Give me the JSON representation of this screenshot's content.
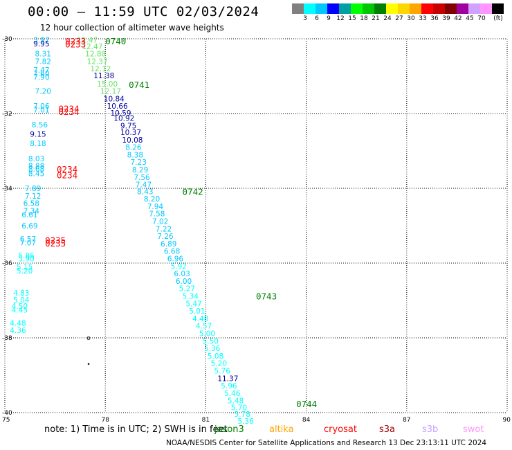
{
  "header": {
    "title": "00:00 – 11:59 UTC 02/03/2024",
    "subtitle": "12 hour collection of altimeter wave heights"
  },
  "legend": {
    "unit": "(ft)",
    "bins": [
      {
        "color": "#808080",
        "label": ""
      },
      {
        "color": "#00ffff",
        "label": "3"
      },
      {
        "color": "#00c8ff",
        "label": "6"
      },
      {
        "color": "#0000ff",
        "label": "9"
      },
      {
        "color": "#00a0a0",
        "label": "12"
      },
      {
        "color": "#00ff00",
        "label": "15"
      },
      {
        "color": "#00c800",
        "label": "18"
      },
      {
        "color": "#008000",
        "label": "21"
      },
      {
        "color": "#ffff00",
        "label": "24"
      },
      {
        "color": "#ffd700",
        "label": "27"
      },
      {
        "color": "#ffa500",
        "label": "30"
      },
      {
        "color": "#ff0000",
        "label": "33"
      },
      {
        "color": "#c80000",
        "label": "36"
      },
      {
        "color": "#800000",
        "label": "39"
      },
      {
        "color": "#a000a0",
        "label": "42"
      },
      {
        "color": "#d2a0ff",
        "label": "45"
      },
      {
        "color": "#ff96ff",
        "label": "70"
      },
      {
        "color": "#000000",
        "label": ""
      }
    ]
  },
  "map": {
    "lon_range": [
      75,
      90
    ],
    "lat_range": [
      -40,
      -30
    ],
    "lon_ticks": [
      "75",
      "78",
      "81",
      "84",
      "87",
      "90"
    ],
    "lat_ticks": [
      {
        "lat": -30,
        "label": "-30"
      },
      {
        "lat": -32,
        "label": "-32"
      },
      {
        "lat": -34,
        "label": "-34"
      },
      {
        "lat": -36,
        "label": "-36"
      },
      {
        "lat": -38,
        "label": "-38"
      },
      {
        "lat": -40,
        "label": "-40"
      }
    ],
    "track_labels": [
      {
        "lon": 75.85,
        "lat": -30.03,
        "text": "3.97",
        "color": "#00c8ff"
      },
      {
        "lon": 75.85,
        "lat": -30.13,
        "text": "9.95",
        "color": "#0000a0"
      },
      {
        "lon": 75.9,
        "lat": -30.4,
        "text": "8.31",
        "color": "#00c8ff"
      },
      {
        "lon": 75.9,
        "lat": -30.6,
        "text": "7.82",
        "color": "#00c8ff"
      },
      {
        "lon": 75.85,
        "lat": -30.83,
        "text": "7.47",
        "color": "#00c8ff"
      },
      {
        "lon": 75.85,
        "lat": -30.93,
        "text": "7.60",
        "color": "#00c8ff"
      },
      {
        "lon": 75.85,
        "lat": -31.02,
        "text": "7.90",
        "color": "#00c8ff"
      },
      {
        "lon": 75.9,
        "lat": -31.4,
        "text": "7.20",
        "color": "#00c8ff"
      },
      {
        "lon": 75.85,
        "lat": -31.8,
        "text": "7.06",
        "color": "#00c8ff"
      },
      {
        "lon": 75.85,
        "lat": -31.9,
        "text": "7.01",
        "color": "#00c8ff"
      },
      {
        "lon": 75.8,
        "lat": -32.3,
        "text": "8.56",
        "color": "#00c8ff"
      },
      {
        "lon": 75.75,
        "lat": -32.55,
        "text": "9.15",
        "color": "#0000a0"
      },
      {
        "lon": 75.75,
        "lat": -32.8,
        "text": "8.18",
        "color": "#00c8ff"
      },
      {
        "lon": 75.7,
        "lat": -33.2,
        "text": "8.03",
        "color": "#00c8ff"
      },
      {
        "lon": 75.7,
        "lat": -33.4,
        "text": "8.88",
        "color": "#00c8ff"
      },
      {
        "lon": 75.7,
        "lat": -33.48,
        "text": "8.68",
        "color": "#00c8ff"
      },
      {
        "lon": 75.7,
        "lat": -33.6,
        "text": "8.45",
        "color": "#00c8ff"
      },
      {
        "lon": 75.6,
        "lat": -34.0,
        "text": "7.89",
        "color": "#00c8ff"
      },
      {
        "lon": 75.6,
        "lat": -34.2,
        "text": "7.12",
        "color": "#00c8ff"
      },
      {
        "lon": 75.55,
        "lat": -34.4,
        "text": "6.58",
        "color": "#00c8ff"
      },
      {
        "lon": 75.55,
        "lat": -34.6,
        "text": "7.34",
        "color": "#00c8ff"
      },
      {
        "lon": 75.5,
        "lat": -34.7,
        "text": "6.61",
        "color": "#00c8ff"
      },
      {
        "lon": 75.5,
        "lat": -35.0,
        "text": "6.69",
        "color": "#00c8ff"
      },
      {
        "lon": 75.45,
        "lat": -35.35,
        "text": "6.57",
        "color": "#00c8ff"
      },
      {
        "lon": 75.45,
        "lat": -35.45,
        "text": "7.07",
        "color": "#00c8ff"
      },
      {
        "lon": 75.4,
        "lat": -35.8,
        "text": "5.86",
        "color": "#00ffff"
      },
      {
        "lon": 75.4,
        "lat": -35.88,
        "text": "5.90",
        "color": "#00ffff"
      },
      {
        "lon": 75.35,
        "lat": -36.1,
        "text": "5.15",
        "color": "#00ffff"
      },
      {
        "lon": 75.35,
        "lat": -36.2,
        "text": "5.20",
        "color": "#00ffff"
      },
      {
        "lon": 75.25,
        "lat": -36.8,
        "text": "4.83",
        "color": "#00ffff"
      },
      {
        "lon": 75.25,
        "lat": -36.98,
        "text": "5.04",
        "color": "#00ffff"
      },
      {
        "lon": 75.2,
        "lat": -37.15,
        "text": "4.50",
        "color": "#00ffff"
      },
      {
        "lon": 75.2,
        "lat": -37.25,
        "text": "4.45",
        "color": "#00ffff"
      },
      {
        "lon": 75.15,
        "lat": -37.6,
        "text": "4.48",
        "color": "#00ffff"
      },
      {
        "lon": 75.15,
        "lat": -37.8,
        "text": "4.36",
        "color": "#00ffff"
      },
      {
        "lon": 77.15,
        "lat": -30.03,
        "text": "12.47",
        "color": "#64e664"
      },
      {
        "lon": 77.3,
        "lat": -30.2,
        "text": "12.47",
        "color": "#64e664"
      },
      {
        "lon": 77.4,
        "lat": -30.4,
        "text": "12.88",
        "color": "#64e664"
      },
      {
        "lon": 77.45,
        "lat": -30.6,
        "text": "12.37",
        "color": "#64e664"
      },
      {
        "lon": 77.55,
        "lat": -30.8,
        "text": "12.12",
        "color": "#64e664"
      },
      {
        "lon": 77.65,
        "lat": -30.98,
        "text": "11.38",
        "color": "#0000a0"
      },
      {
        "lon": 77.75,
        "lat": -31.2,
        "text": "15.00",
        "color": "#64e664"
      },
      {
        "lon": 77.85,
        "lat": -31.4,
        "text": "12.17",
        "color": "#64e664"
      },
      {
        "lon": 77.95,
        "lat": -31.6,
        "text": "10.84",
        "color": "#0000a0"
      },
      {
        "lon": 78.05,
        "lat": -31.8,
        "text": "10.66",
        "color": "#0000a0"
      },
      {
        "lon": 78.15,
        "lat": -31.98,
        "text": "10.59",
        "color": "#0000a0"
      },
      {
        "lon": 78.25,
        "lat": -32.12,
        "text": "10.92",
        "color": "#0000a0"
      },
      {
        "lon": 78.45,
        "lat": -32.32,
        "text": "9.75",
        "color": "#0000a0"
      },
      {
        "lon": 78.45,
        "lat": -32.5,
        "text": "10.37",
        "color": "#0000a0"
      },
      {
        "lon": 78.5,
        "lat": -32.7,
        "text": "10.08",
        "color": "#0000a0"
      },
      {
        "lon": 78.6,
        "lat": -32.9,
        "text": "8.26",
        "color": "#00c8ff"
      },
      {
        "lon": 78.65,
        "lat": -33.1,
        "text": "8.38",
        "color": "#00c8ff"
      },
      {
        "lon": 78.75,
        "lat": -33.3,
        "text": "7.23",
        "color": "#00c8ff"
      },
      {
        "lon": 78.8,
        "lat": -33.5,
        "text": "8.29",
        "color": "#00c8ff"
      },
      {
        "lon": 78.85,
        "lat": -33.7,
        "text": "7.56",
        "color": "#00c8ff"
      },
      {
        "lon": 78.9,
        "lat": -33.9,
        "text": "7.47",
        "color": "#00c8ff"
      },
      {
        "lon": 78.95,
        "lat": -34.08,
        "text": "8.43",
        "color": "#00c8ff"
      },
      {
        "lon": 79.15,
        "lat": -34.28,
        "text": "8.20",
        "color": "#00c8ff"
      },
      {
        "lon": 79.25,
        "lat": -34.48,
        "text": "7.94",
        "color": "#00c8ff"
      },
      {
        "lon": 79.3,
        "lat": -34.68,
        "text": "7.58",
        "color": "#00c8ff"
      },
      {
        "lon": 79.4,
        "lat": -34.88,
        "text": "7.02",
        "color": "#00c8ff"
      },
      {
        "lon": 79.5,
        "lat": -35.08,
        "text": "7.22",
        "color": "#00c8ff"
      },
      {
        "lon": 79.55,
        "lat": -35.28,
        "text": "7.26",
        "color": "#00c8ff"
      },
      {
        "lon": 79.65,
        "lat": -35.48,
        "text": "6.89",
        "color": "#00c8ff"
      },
      {
        "lon": 79.75,
        "lat": -35.68,
        "text": "6.68",
        "color": "#00c8ff"
      },
      {
        "lon": 79.85,
        "lat": -35.88,
        "text": "6.96",
        "color": "#00c8ff"
      },
      {
        "lon": 79.95,
        "lat": -36.08,
        "text": "5.92",
        "color": "#00ffff"
      },
      {
        "lon": 80.05,
        "lat": -36.28,
        "text": "6.03",
        "color": "#00c8ff"
      },
      {
        "lon": 80.1,
        "lat": -36.48,
        "text": "6.00",
        "color": "#00c8ff"
      },
      {
        "lon": 80.2,
        "lat": -36.68,
        "text": "5.27",
        "color": "#00ffff"
      },
      {
        "lon": 80.3,
        "lat": -36.88,
        "text": "5.34",
        "color": "#00ffff"
      },
      {
        "lon": 80.4,
        "lat": -37.08,
        "text": "5.47",
        "color": "#00ffff"
      },
      {
        "lon": 80.5,
        "lat": -37.28,
        "text": "5.01",
        "color": "#00ffff"
      },
      {
        "lon": 80.6,
        "lat": -37.48,
        "text": "4.48",
        "color": "#00ffff"
      },
      {
        "lon": 80.7,
        "lat": -37.68,
        "text": "4.57",
        "color": "#00ffff"
      },
      {
        "lon": 80.8,
        "lat": -37.88,
        "text": "5.00",
        "color": "#00ffff"
      },
      {
        "lon": 80.9,
        "lat": -38.08,
        "text": "5.50",
        "color": "#00ffff"
      },
      {
        "lon": 80.95,
        "lat": -38.28,
        "text": "5.36",
        "color": "#00ffff"
      },
      {
        "lon": 81.05,
        "lat": -38.48,
        "text": "5.08",
        "color": "#00ffff"
      },
      {
        "lon": 81.15,
        "lat": -38.68,
        "text": "5.20",
        "color": "#00ffff"
      },
      {
        "lon": 81.25,
        "lat": -38.88,
        "text": "5.76",
        "color": "#00ffff"
      },
      {
        "lon": 81.35,
        "lat": -39.08,
        "text": "11.37",
        "color": "#0000a0"
      },
      {
        "lon": 81.45,
        "lat": -39.28,
        "text": "5.96",
        "color": "#00ffff"
      },
      {
        "lon": 81.55,
        "lat": -39.48,
        "text": "5.46",
        "color": "#00ffff"
      },
      {
        "lon": 81.65,
        "lat": -39.68,
        "text": "5.48",
        "color": "#00ffff"
      },
      {
        "lon": 81.75,
        "lat": -39.86,
        "text": "5.70",
        "color": "#00ffff"
      },
      {
        "lon": 81.85,
        "lat": -40.04,
        "text": "5.78",
        "color": "#00ffff"
      },
      {
        "lon": 81.95,
        "lat": -40.22,
        "text": "5.36",
        "color": "#00ffff"
      }
    ],
    "time_labels": [
      {
        "lon": 76.8,
        "lat": -30.06,
        "text": "0233",
        "color": "#ff0000"
      },
      {
        "lon": 76.8,
        "lat": -30.14,
        "text": "0233",
        "color": "#ff0000"
      },
      {
        "lon": 78.0,
        "lat": -30.06,
        "text": "0740",
        "color": "#008000"
      },
      {
        "lon": 78.7,
        "lat": -31.22,
        "text": "0741",
        "color": "#008000"
      },
      {
        "lon": 76.6,
        "lat": -31.86,
        "text": "0234",
        "color": "#ff0000"
      },
      {
        "lon": 76.6,
        "lat": -31.94,
        "text": "0234",
        "color": "#ff0000"
      },
      {
        "lon": 76.55,
        "lat": -33.48,
        "text": "0234",
        "color": "#ff0000"
      },
      {
        "lon": 76.55,
        "lat": -33.64,
        "text": "0234",
        "color": "#ff0000"
      },
      {
        "lon": 80.3,
        "lat": -34.08,
        "text": "0742",
        "color": "#008000"
      },
      {
        "lon": 76.2,
        "lat": -35.38,
        "text": "0235",
        "color": "#ff0000"
      },
      {
        "lon": 76.2,
        "lat": -35.46,
        "text": "0235",
        "color": "#ff0000"
      },
      {
        "lon": 82.5,
        "lat": -36.88,
        "text": "0743",
        "color": "#008000"
      },
      {
        "lon": 83.7,
        "lat": -39.76,
        "text": "0744",
        "color": "#008000"
      }
    ],
    "markers": [
      {
        "lon": 77.5,
        "lat": -38.0,
        "symbol": "o"
      },
      {
        "lon": 77.5,
        "lat": -38.7,
        "symbol": "•"
      }
    ]
  },
  "footer": {
    "note": "note:  1) Time is in UTC;  2) SWH is in feet",
    "satellites": [
      {
        "name": "jason3",
        "color": "#008000"
      },
      {
        "name": "altika",
        "color": "#ffa500"
      },
      {
        "name": "cryosat",
        "color": "#ff0000"
      },
      {
        "name": "s3a",
        "color": "#a00000"
      },
      {
        "name": "s3b",
        "color": "#c8a0ff"
      },
      {
        "name": "swot",
        "color": "#ff96ff"
      }
    ],
    "credit": "NOAA/NESDIS Center for Satellite Applications and Research    13 Dec 23:13:11 UTC 2024"
  }
}
